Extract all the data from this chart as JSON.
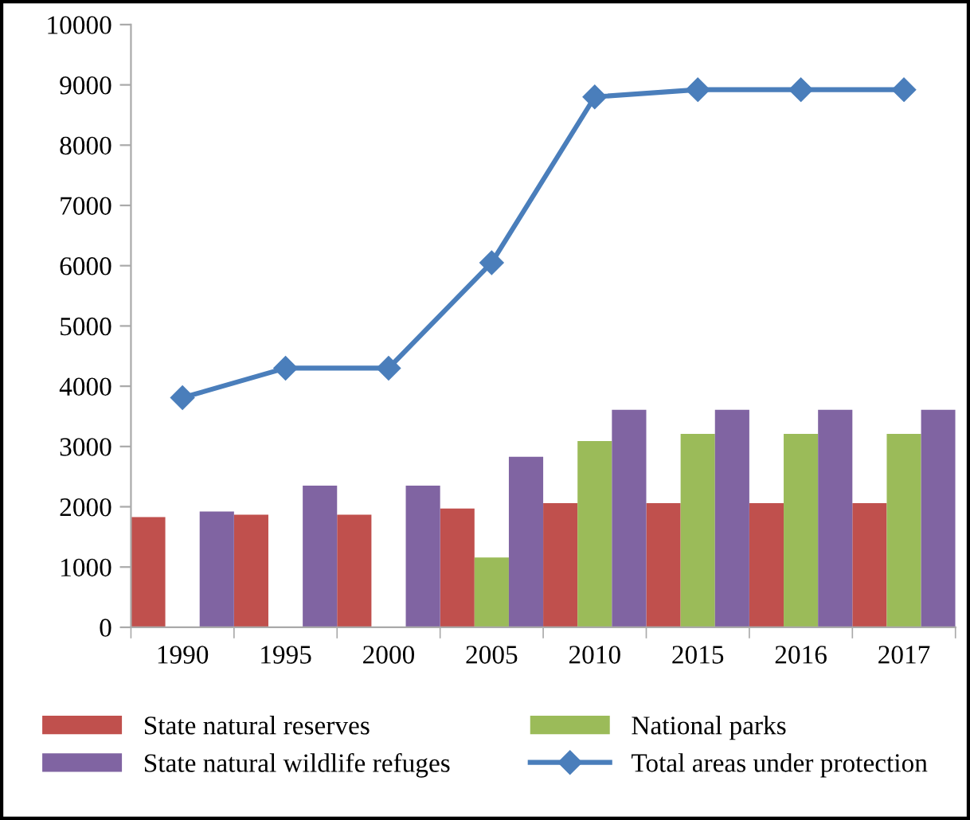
{
  "chart_data": {
    "type": "bar",
    "categories": [
      "1990",
      "1995",
      "2000",
      "2005",
      "2010",
      "2015",
      "2016",
      "2017"
    ],
    "series": [
      {
        "name": "State natural reserves",
        "color": "#c0504d",
        "values": [
          1830,
          1870,
          1870,
          1970,
          2060,
          2060,
          2060,
          2060
        ]
      },
      {
        "name": "National parks",
        "color": "#9bbb59",
        "values": [
          null,
          null,
          null,
          1160,
          3090,
          3210,
          3210,
          3210
        ]
      },
      {
        "name": "State natural wildlife refuges",
        "color": "#8064a2",
        "values": [
          1920,
          2350,
          2350,
          2830,
          3610,
          3610,
          3610,
          3610
        ]
      },
      {
        "name": "Total areas under protection",
        "color": "#4a7ebb",
        "type": "line",
        "marker": "diamond",
        "values": [
          3810,
          4300,
          4300,
          6050,
          8800,
          8920,
          8920,
          8920
        ]
      }
    ],
    "ylim": [
      0,
      10000
    ],
    "yticks": [
      0,
      1000,
      2000,
      3000,
      4000,
      5000,
      6000,
      7000,
      8000,
      9000,
      10000
    ],
    "grid": false,
    "legend": "bottom"
  }
}
